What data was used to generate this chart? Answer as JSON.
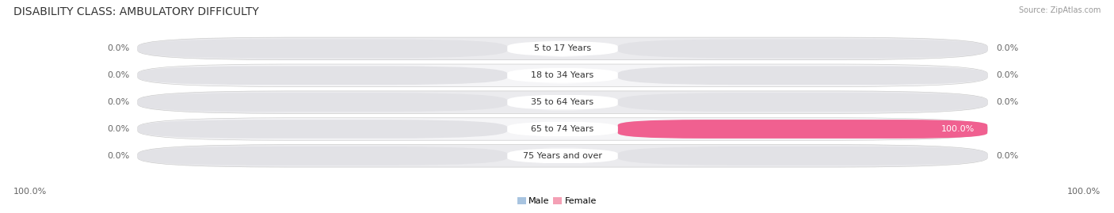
{
  "title": "DISABILITY CLASS: AMBULATORY DIFFICULTY",
  "source": "Source: ZipAtlas.com",
  "categories": [
    "5 to 17 Years",
    "18 to 34 Years",
    "35 to 64 Years",
    "65 to 74 Years",
    "75 Years and over"
  ],
  "male_values": [
    0.0,
    0.0,
    0.0,
    0.0,
    0.0
  ],
  "female_values": [
    0.0,
    0.0,
    0.0,
    100.0,
    0.0
  ],
  "male_left_labels": [
    "0.0%",
    "0.0%",
    "0.0%",
    "0.0%",
    "0.0%"
  ],
  "female_right_labels": [
    "0.0%",
    "0.0%",
    "0.0%",
    "100.0%",
    "0.0%"
  ],
  "bottom_left_label": "100.0%",
  "bottom_right_label": "100.0%",
  "male_color": "#a8c4e0",
  "female_color": "#f4a0b5",
  "female_color_full": "#f06090",
  "bar_bg_color": "#e2e2e6",
  "row_bg_color": "#ebebee",
  "row_bg_color2": "#f5f5f7",
  "title_fontsize": 10,
  "label_fontsize": 8,
  "category_fontsize": 8,
  "max_value": 100.0,
  "background_color": "#ffffff"
}
